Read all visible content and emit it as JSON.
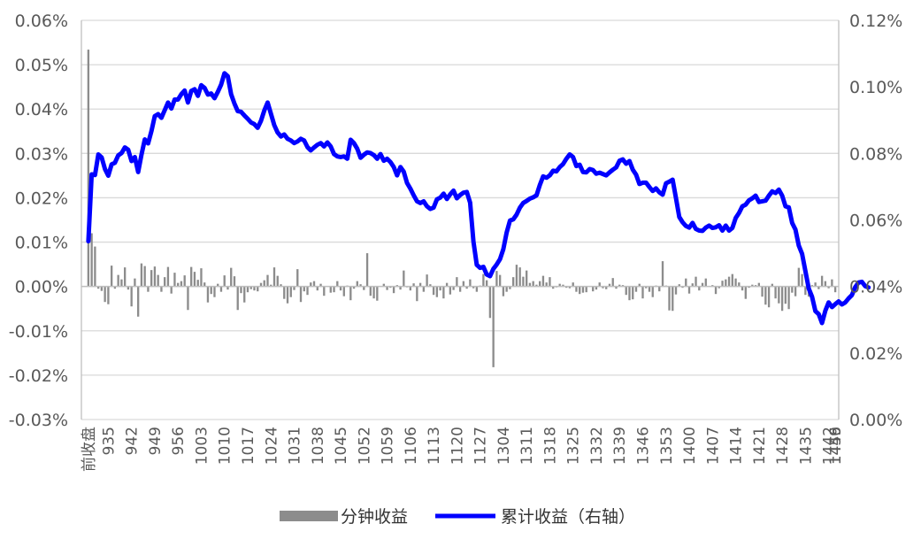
{
  "chart_data": {
    "type": "bar+line",
    "title": "",
    "left_axis": {
      "ylim": [
        -0.03,
        0.06
      ],
      "ticks": [
        -0.03,
        -0.02,
        -0.01,
        0.0,
        0.01,
        0.02,
        0.03,
        0.04,
        0.05,
        0.06
      ],
      "tick_labels": [
        "-0.03%",
        "-0.02%",
        "-0.01%",
        "0.00%",
        "0.01%",
        "0.02%",
        "0.03%",
        "0.04%",
        "0.05%",
        "0.06%"
      ]
    },
    "right_axis": {
      "ylim": [
        0.0,
        0.12
      ],
      "ticks": [
        0.0,
        0.02,
        0.04,
        0.06,
        0.08,
        0.1,
        0.12
      ],
      "tick_labels": [
        "0.00%",
        "0.02%",
        "0.04%",
        "0.06%",
        "0.08%",
        "0.10%",
        "0.12%"
      ]
    },
    "x_tick_labels": [
      "前收盘",
      "935",
      "942",
      "949",
      "956",
      "1003",
      "1010",
      "1017",
      "1024",
      "1031",
      "1038",
      "1045",
      "1052",
      "1059",
      "1106",
      "1113",
      "1120",
      "1127",
      "1304",
      "1311",
      "1318",
      "1325",
      "1332",
      "1339",
      "1346",
      "1353",
      "1400",
      "1407",
      "1414",
      "1421",
      "1428",
      "1435",
      "1442",
      "1449",
      "1456"
    ],
    "grid": "horizontal",
    "legend_position": "bottom",
    "series": [
      {
        "name": "分钟收益",
        "kind": "bar",
        "axis": "left",
        "color": "#8c8c8c",
        "values": [
          0.0534,
          0.012,
          0.009,
          -0.0005,
          -0.001,
          -0.0035,
          -0.004,
          0.0047,
          -0.0005,
          0.0026,
          0.0016,
          0.0043,
          -0.0007,
          -0.0045,
          0.0018,
          -0.0068,
          0.0052,
          0.0046,
          -0.0012,
          0.0037,
          0.0045,
          0.0026,
          -0.0012,
          0.0021,
          0.0044,
          -0.0016,
          0.0031,
          0.0008,
          0.0012,
          0.0025,
          -0.0053,
          0.0044,
          0.0033,
          0.0015,
          0.0041,
          0.0009,
          -0.0036,
          -0.0017,
          -0.0024,
          0.0006,
          -0.0012,
          0.0025,
          -0.0007,
          0.0042,
          0.0023,
          -0.0053,
          -0.0015,
          -0.0036,
          -0.0013,
          -0.0006,
          -0.0009,
          -0.0011,
          0.0008,
          0.0014,
          0.0026,
          0.0004,
          0.0043,
          0.0024,
          0.0005,
          -0.0028,
          -0.0038,
          -0.0024,
          -0.0008,
          0.0039,
          -0.0035,
          -0.0011,
          -0.0019,
          0.0009,
          0.0012,
          -0.0009,
          0.0006,
          -0.0021,
          0.0001,
          -0.0014,
          -0.0013,
          0.0012,
          -0.0009,
          -0.0022,
          0.0002,
          -0.0031,
          -0.0005,
          0.0012,
          0.0005,
          -0.0008,
          0.0075,
          -0.0021,
          -0.0027,
          -0.0032,
          0.0001,
          0.0006,
          -0.0008,
          -0.0003,
          -0.0015,
          0.0003,
          -0.0007,
          0.0036,
          -0.0002,
          -0.0009,
          0.0007,
          -0.0033,
          0.0008,
          -0.0012,
          0.0027,
          0.0005,
          -0.0019,
          -0.0024,
          -0.0009,
          -0.0027,
          0.0008,
          -0.0018,
          -0.0008,
          0.0021,
          -0.0012,
          0.0012,
          -0.0005,
          0.0016,
          -0.0004,
          -0.0012,
          0.0002,
          0.0028,
          0.0014,
          -0.0071,
          -0.0182,
          0.0035,
          0.0026,
          -0.0022,
          -0.0012,
          -0.0006,
          0.0021,
          0.0049,
          0.0043,
          0.0022,
          0.0036,
          0.0008,
          0.0012,
          0.0004,
          0.0012,
          0.0024,
          0.0009,
          0.0021,
          -0.0005,
          -0.0002,
          0.0006,
          0.0004,
          -0.0003,
          -0.0004,
          0.0009,
          -0.0012,
          -0.0017,
          -0.0014,
          -0.0013,
          0.0001,
          -0.0011,
          -0.0007,
          0.0009,
          -0.0004,
          -0.0006,
          0.0006,
          0.0019,
          -0.0005,
          0.0004,
          0.0003,
          -0.0019,
          -0.0031,
          -0.0029,
          -0.0012,
          0.0006,
          -0.0027,
          -0.0004,
          -0.0012,
          -0.0024,
          0.0002,
          -0.0011,
          0.0057,
          0.0002,
          -0.0054,
          -0.0055,
          -0.0018,
          0.0005,
          -0.0003,
          0.0018,
          -0.0016,
          0.0007,
          0.0022,
          -0.0009,
          0.0008,
          0.0018,
          0.0001,
          0.0003,
          -0.0017,
          -0.0004,
          0.0013,
          0.0016,
          0.0022,
          0.0028,
          0.0018,
          0.0009,
          -0.0009,
          -0.0028,
          -0.0003,
          0.0004,
          0.0003,
          0.0008,
          -0.0023,
          -0.0041,
          -0.0047,
          0.0006,
          -0.0027,
          -0.0038,
          -0.0055,
          -0.0039,
          -0.0051,
          -0.0014,
          -0.0022,
          0.0042,
          0.0028,
          -0.0019,
          -0.0023,
          0.0003,
          0.0009,
          -0.0006,
          0.0024,
          0.0012,
          -0.0004,
          0.0016,
          -0.0013
        ],
        "values_unit": "%"
      },
      {
        "name": "累计收益（右轴）",
        "kind": "line",
        "axis": "right",
        "color": "#0000ff",
        "values": [
          0.0536,
          0.0737,
          0.0735,
          0.0797,
          0.0788,
          0.0753,
          0.0733,
          0.0767,
          0.0772,
          0.0794,
          0.0801,
          0.0818,
          0.0811,
          0.0777,
          0.0789,
          0.0744,
          0.0796,
          0.0842,
          0.083,
          0.0867,
          0.0912,
          0.0918,
          0.0907,
          0.093,
          0.0953,
          0.0935,
          0.0962,
          0.0962,
          0.0978,
          0.0989,
          0.0953,
          0.0988,
          0.0993,
          0.0973,
          0.1005,
          0.0997,
          0.0977,
          0.098,
          0.0966,
          0.0985,
          0.1007,
          0.1041,
          0.1032,
          0.0978,
          0.095,
          0.0927,
          0.0925,
          0.0914,
          0.0904,
          0.0893,
          0.0888,
          0.0877,
          0.0898,
          0.0929,
          0.0953,
          0.0919,
          0.0885,
          0.0863,
          0.0851,
          0.0857,
          0.0844,
          0.0839,
          0.0831,
          0.0836,
          0.0844,
          0.0839,
          0.0819,
          0.0809,
          0.0818,
          0.0826,
          0.0831,
          0.0821,
          0.0833,
          0.0821,
          0.0798,
          0.0791,
          0.0789,
          0.0791,
          0.0784,
          0.0841,
          0.0831,
          0.0814,
          0.0787,
          0.0796,
          0.0803,
          0.0801,
          0.0795,
          0.0784,
          0.0798,
          0.0778,
          0.0784,
          0.0774,
          0.0759,
          0.0734,
          0.0759,
          0.0745,
          0.0711,
          0.0694,
          0.0674,
          0.0656,
          0.0651,
          0.0656,
          0.0641,
          0.0633,
          0.0637,
          0.0662,
          0.0667,
          0.0679,
          0.0663,
          0.0677,
          0.0688,
          0.0665,
          0.0675,
          0.0682,
          0.0684,
          0.0652,
          0.0535,
          0.0465,
          0.0456,
          0.0459,
          0.0436,
          0.0431,
          0.0453,
          0.0466,
          0.0482,
          0.0512,
          0.0562,
          0.0598,
          0.0602,
          0.0616,
          0.0637,
          0.0651,
          0.0657,
          0.0664,
          0.0668,
          0.0674,
          0.0705,
          0.0731,
          0.0727,
          0.0734,
          0.0748,
          0.0746,
          0.0759,
          0.0768,
          0.0784,
          0.0797,
          0.0789,
          0.0762,
          0.0766,
          0.0744,
          0.0743,
          0.0753,
          0.075,
          0.0739,
          0.0742,
          0.0738,
          0.0734,
          0.0743,
          0.0751,
          0.0758,
          0.0778,
          0.0782,
          0.0769,
          0.0777,
          0.0751,
          0.0736,
          0.0708,
          0.0712,
          0.0712,
          0.0699,
          0.0687,
          0.0695,
          0.0683,
          0.0676,
          0.071,
          0.0715,
          0.0721,
          0.0666,
          0.0609,
          0.0593,
          0.0582,
          0.0577,
          0.0591,
          0.0573,
          0.0568,
          0.0567,
          0.0577,
          0.0583,
          0.0576,
          0.0578,
          0.0584,
          0.0568,
          0.0583,
          0.0568,
          0.0576,
          0.0606,
          0.0621,
          0.0641,
          0.0646,
          0.0659,
          0.0665,
          0.0673,
          0.0654,
          0.0656,
          0.0658,
          0.0673,
          0.0686,
          0.0681,
          0.0691,
          0.0673,
          0.0641,
          0.0638,
          0.0591,
          0.0571,
          0.0523,
          0.0498,
          0.0446,
          0.0394,
          0.0369,
          0.0326,
          0.0317,
          0.029,
          0.0327,
          0.0352,
          0.0338,
          0.0347,
          0.0355,
          0.0346,
          0.0352,
          0.0364,
          0.0374,
          0.0398,
          0.0412,
          0.0414,
          0.0401,
          0.0397
        ]
      }
    ]
  },
  "legend": {
    "bar_label": "分钟收益",
    "line_label": "累计收益（右轴）"
  },
  "colors": {
    "bar": "#8c8c8c",
    "line": "#0000ff",
    "grid": "#d9d9d9",
    "axis_text": "#595959"
  }
}
